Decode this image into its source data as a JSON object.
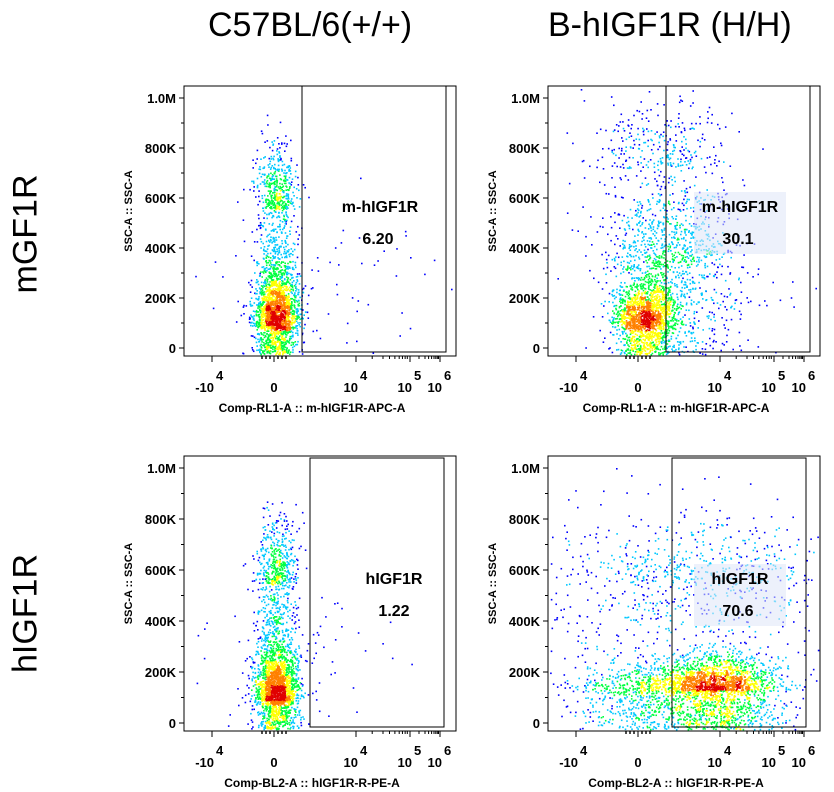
{
  "column_headers": [
    "C57BL/6(+/+)",
    "B-hIGF1R (H/H)"
  ],
  "row_headers": [
    "mGF1R",
    "hIGF1R"
  ],
  "chart_data": [
    {
      "type": "scatter",
      "title": "",
      "xlabel": "Comp-RL1-A :: m-hIGF1R-APC-A",
      "ylabel": "SSC-A :: SSC-A",
      "y_ticks": [
        "0",
        "200K",
        "400K",
        "600K",
        "800K",
        "1.0M"
      ],
      "x_ticks": [
        "-10^4",
        "0",
        "10^4",
        "10^5",
        "10^6"
      ],
      "ylim": [
        0,
        1000000
      ],
      "x_scale": "biexponential",
      "gate": {
        "name": "m-hIGF1R",
        "percent": "6.20",
        "x_min": 1500
      },
      "distribution": "single dense population centered near 0 on x, low SSC; few events in gate"
    },
    {
      "type": "scatter",
      "title": "",
      "xlabel": "Comp-RL1-A :: m-hIGF1R-APC-A",
      "ylabel": "SSC-A :: SSC-A",
      "y_ticks": [
        "0",
        "200K",
        "400K",
        "600K",
        "800K",
        "1.0M"
      ],
      "x_ticks": [
        "-10^4",
        "0",
        "10^4",
        "10^5",
        "10^6"
      ],
      "ylim": [
        0,
        1000000
      ],
      "x_scale": "biexponential",
      "gate": {
        "name": "m-hIGF1R",
        "percent": "30.1",
        "x_min": 1500
      },
      "distribution": "population near 0 with a shoulder extending into positive gate"
    },
    {
      "type": "scatter",
      "title": "",
      "xlabel": "Comp-BL2-A :: hIGF1R-R-PE-A",
      "ylabel": "SSC-A :: SSC-A",
      "y_ticks": [
        "0",
        "200K",
        "400K",
        "600K",
        "800K",
        "1.0M"
      ],
      "x_ticks": [
        "-10^4",
        "0",
        "10^4",
        "10^5",
        "10^6"
      ],
      "ylim": [
        0,
        1000000
      ],
      "x_scale": "biexponential",
      "gate": {
        "name": "hIGF1R",
        "percent": "1.22",
        "x_min": 1500
      },
      "distribution": "single dense population centered near 0, almost none in gate"
    },
    {
      "type": "scatter",
      "title": "",
      "xlabel": "Comp-BL2-A :: hIGF1R-R-PE-A",
      "ylabel": "SSC-A :: SSC-A",
      "y_ticks": [
        "0",
        "200K",
        "400K",
        "600K",
        "800K",
        "1.0M"
      ],
      "x_ticks": [
        "-10^4",
        "0",
        "10^4",
        "10^5",
        "10^6"
      ],
      "ylim": [
        0,
        1000000
      ],
      "x_scale": "biexponential",
      "gate": {
        "name": "hIGF1R",
        "percent": "70.6",
        "x_min": 1500
      },
      "distribution": "broad population with main peak near 10^4 inside the gate"
    }
  ],
  "colors": {
    "density_low": "#0000ff",
    "density_mid_low": "#00c8ff",
    "density_mid": "#00ff40",
    "density_mid_high": "#ffff00",
    "density_high": "#ff8000",
    "density_max": "#e00000",
    "gate_line": "#000000"
  }
}
